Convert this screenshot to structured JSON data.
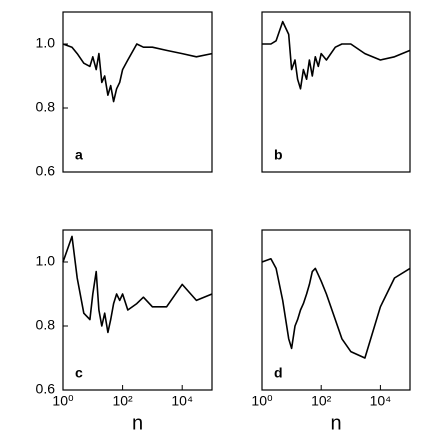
{
  "chart_data": [
    {
      "type": "line",
      "label": "a",
      "color": "#000000",
      "log_x": true,
      "xlim": [
        1,
        100000
      ],
      "ylim": [
        0.6,
        1.1
      ],
      "yticks": [
        0.6,
        0.8,
        {
          "value": 1.0,
          "label": "1.0"
        }
      ],
      "x": [
        1,
        2,
        3,
        5,
        8,
        10,
        13,
        16,
        20,
        25,
        32,
        40,
        50,
        63,
        80,
        100,
        150,
        300,
        500,
        1000,
        3000,
        10000,
        30000,
        100000
      ],
      "values": [
        1.0,
        0.99,
        0.97,
        0.94,
        0.93,
        0.96,
        0.92,
        0.97,
        0.88,
        0.9,
        0.84,
        0.87,
        0.82,
        0.86,
        0.88,
        0.92,
        0.95,
        1.0,
        0.99,
        0.99,
        0.98,
        0.97,
        0.96,
        0.97
      ]
    },
    {
      "type": "line",
      "label": "b",
      "color": "#000000",
      "log_x": true,
      "xlim": [
        1,
        100000
      ],
      "ylim": [
        0.6,
        1.1
      ],
      "x": [
        1,
        2,
        3,
        5,
        8,
        10,
        13,
        16,
        20,
        25,
        32,
        40,
        50,
        63,
        80,
        100,
        150,
        300,
        500,
        1000,
        3000,
        10000,
        30000,
        100000
      ],
      "values": [
        1.0,
        1.0,
        1.01,
        1.07,
        1.03,
        0.92,
        0.95,
        0.89,
        0.86,
        0.92,
        0.89,
        0.95,
        0.9,
        0.96,
        0.93,
        0.97,
        0.95,
        0.99,
        1.0,
        1.0,
        0.97,
        0.95,
        0.96,
        0.98
      ]
    },
    {
      "type": "line",
      "label": "c",
      "color": "#000000",
      "log_x": true,
      "xlim": [
        1,
        100000
      ],
      "ylim": [
        0.6,
        1.1
      ],
      "yticks": [
        0.6,
        0.8,
        {
          "value": 1.0,
          "label": "1.0"
        }
      ],
      "xticks": [
        {
          "value": 1,
          "label": "10⁰"
        },
        {
          "value": 100,
          "label": "10²"
        },
        {
          "value": 10000,
          "label": "10⁴"
        }
      ],
      "xlabel": "n",
      "x": [
        1,
        2,
        3,
        5,
        8,
        10,
        13,
        16,
        20,
        25,
        32,
        40,
        50,
        63,
        80,
        100,
        150,
        300,
        500,
        1000,
        3000,
        10000,
        30000,
        100000
      ],
      "values": [
        1.0,
        1.08,
        0.95,
        0.84,
        0.82,
        0.9,
        0.97,
        0.85,
        0.8,
        0.84,
        0.78,
        0.82,
        0.87,
        0.9,
        0.88,
        0.9,
        0.85,
        0.87,
        0.89,
        0.86,
        0.86,
        0.93,
        0.88,
        0.9
      ]
    },
    {
      "type": "line",
      "label": "d",
      "color": "#000000",
      "log_x": true,
      "xlim": [
        1,
        100000
      ],
      "ylim": [
        0.6,
        1.1
      ],
      "xticks": [
        {
          "value": 1,
          "label": "10⁰"
        },
        {
          "value": 100,
          "label": "10²"
        },
        {
          "value": 10000,
          "label": "10⁴"
        }
      ],
      "xlabel": "n",
      "x": [
        1,
        2,
        3,
        5,
        8,
        10,
        13,
        16,
        20,
        25,
        32,
        40,
        50,
        63,
        80,
        100,
        150,
        300,
        500,
        1000,
        3000,
        10000,
        30000,
        100000
      ],
      "values": [
        1.0,
        1.01,
        0.98,
        0.88,
        0.76,
        0.73,
        0.8,
        0.82,
        0.85,
        0.87,
        0.9,
        0.93,
        0.97,
        0.98,
        0.96,
        0.94,
        0.9,
        0.82,
        0.76,
        0.72,
        0.7,
        0.86,
        0.95,
        0.98
      ]
    }
  ]
}
